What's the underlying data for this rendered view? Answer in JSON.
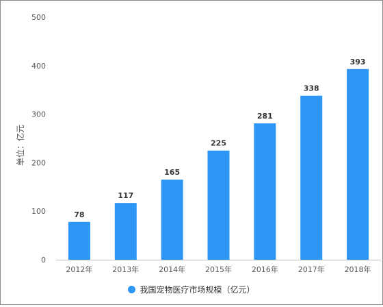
{
  "chart_data": {
    "type": "bar",
    "categories": [
      "2012年",
      "2013年",
      "2014年",
      "2015年",
      "2016年",
      "2017年",
      "2018年"
    ],
    "series": [
      {
        "name": "我国宠物医疗市场规模（亿元）",
        "values": [
          78,
          117,
          165,
          225,
          281,
          338,
          393
        ],
        "color": "#2d95f3"
      }
    ],
    "ylabel": "单位：亿元",
    "ylim": [
      0,
      500
    ],
    "yticks": [
      0,
      100,
      200,
      300,
      400,
      500
    ],
    "grid": false,
    "data_labels": true,
    "legend_position": "bottom"
  }
}
